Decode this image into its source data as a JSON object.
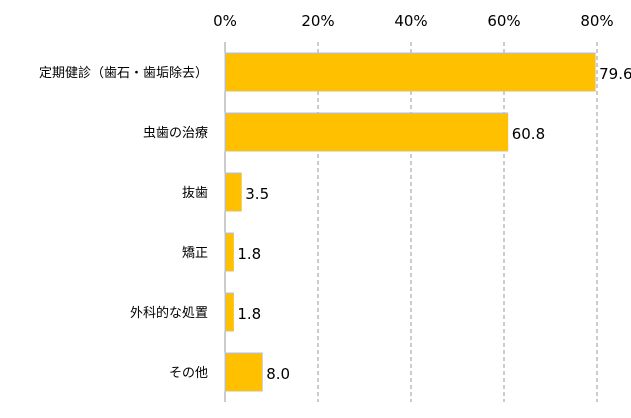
{
  "chart_data": {
    "type": "bar",
    "orientation": "horizontal",
    "categories": [
      "定期健診（歯石・歯垢除去）",
      "虫歯の治療",
      "抜歯",
      "矯正",
      "外科的な処置",
      "その他"
    ],
    "values": [
      79.6,
      60.8,
      3.5,
      1.8,
      1.8,
      8.0
    ],
    "value_labels": [
      "79.6",
      "60.8",
      "3.5",
      "1.8",
      "1.8",
      "8.0"
    ],
    "xlim": [
      0,
      80
    ],
    "xticks": [
      "0%",
      "20%",
      "40%",
      "60%",
      "80%"
    ],
    "grid": true,
    "bar_color": "#FFC000",
    "title": "",
    "xlabel": "",
    "ylabel": ""
  }
}
